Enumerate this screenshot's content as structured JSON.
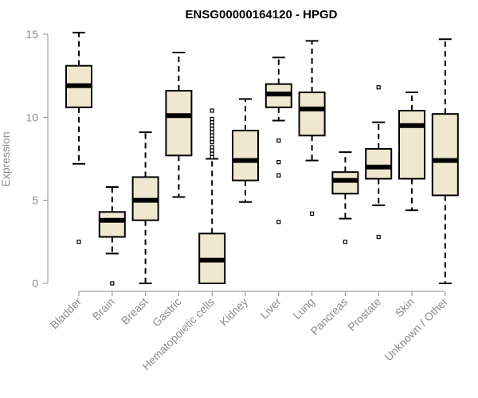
{
  "chart_data": {
    "type": "boxplot",
    "title": "ENSG00000164120 - HPGD",
    "xlabel": "",
    "ylabel": "Expression",
    "ylim": [
      0,
      15
    ],
    "yticks": [
      0,
      5,
      10,
      15
    ],
    "grid": false,
    "box_fill": "#efe8cf",
    "stroke_color": "#000000",
    "categories": [
      "Bladder",
      "Brain",
      "Breast",
      "Gastric",
      "Hematopoietic cells",
      "Kidney",
      "Liver",
      "Lung",
      "Pancreas",
      "Prostate",
      "Skin",
      "Unknown / Other"
    ],
    "boxes": [
      {
        "category": "Bladder",
        "whisker_low": 7.2,
        "q1": 10.6,
        "median": 11.9,
        "q3": 13.1,
        "whisker_high": 15.1,
        "outliers": [
          2.5
        ]
      },
      {
        "category": "Brain",
        "whisker_low": 1.8,
        "q1": 2.8,
        "median": 3.8,
        "q3": 4.3,
        "whisker_high": 5.8,
        "outliers": [
          0.0
        ]
      },
      {
        "category": "Breast",
        "whisker_low": 0.0,
        "q1": 3.8,
        "median": 5.0,
        "q3": 6.4,
        "whisker_high": 9.1,
        "outliers": []
      },
      {
        "category": "Gastric",
        "whisker_low": 5.2,
        "q1": 7.7,
        "median": 10.1,
        "q3": 11.6,
        "whisker_high": 13.9,
        "outliers": []
      },
      {
        "category": "Hematopoietic cells",
        "whisker_low": 0.0,
        "q1": 0.0,
        "median": 1.4,
        "q3": 3.0,
        "whisker_high": 7.5,
        "outliers": [
          7.6,
          7.8,
          8.0,
          8.2,
          8.5,
          8.7,
          8.9,
          9.1,
          9.3,
          9.5,
          9.7,
          9.9,
          10.4
        ]
      },
      {
        "category": "Kidney",
        "whisker_low": 4.9,
        "q1": 6.2,
        "median": 7.4,
        "q3": 9.2,
        "whisker_high": 11.1,
        "outliers": []
      },
      {
        "category": "Liver",
        "whisker_low": 9.8,
        "q1": 10.6,
        "median": 11.4,
        "q3": 12.0,
        "whisker_high": 13.6,
        "outliers": [
          8.6,
          7.3,
          6.5,
          3.7
        ]
      },
      {
        "category": "Lung",
        "whisker_low": 7.4,
        "q1": 8.9,
        "median": 10.5,
        "q3": 11.5,
        "whisker_high": 14.6,
        "outliers": [
          4.2
        ]
      },
      {
        "category": "Pancreas",
        "whisker_low": 3.9,
        "q1": 5.4,
        "median": 6.2,
        "q3": 6.7,
        "whisker_high": 7.9,
        "outliers": [
          2.5
        ]
      },
      {
        "category": "Prostate",
        "whisker_low": 4.7,
        "q1": 6.3,
        "median": 7.0,
        "q3": 8.1,
        "whisker_high": 9.7,
        "outliers": [
          11.8,
          2.8
        ]
      },
      {
        "category": "Skin",
        "whisker_low": 4.4,
        "q1": 6.3,
        "median": 9.5,
        "q3": 10.4,
        "whisker_high": 11.5,
        "outliers": []
      },
      {
        "category": "Unknown / Other",
        "whisker_low": 0.0,
        "q1": 5.3,
        "median": 7.4,
        "q3": 10.2,
        "whisker_high": 14.7,
        "outliers": []
      }
    ]
  }
}
